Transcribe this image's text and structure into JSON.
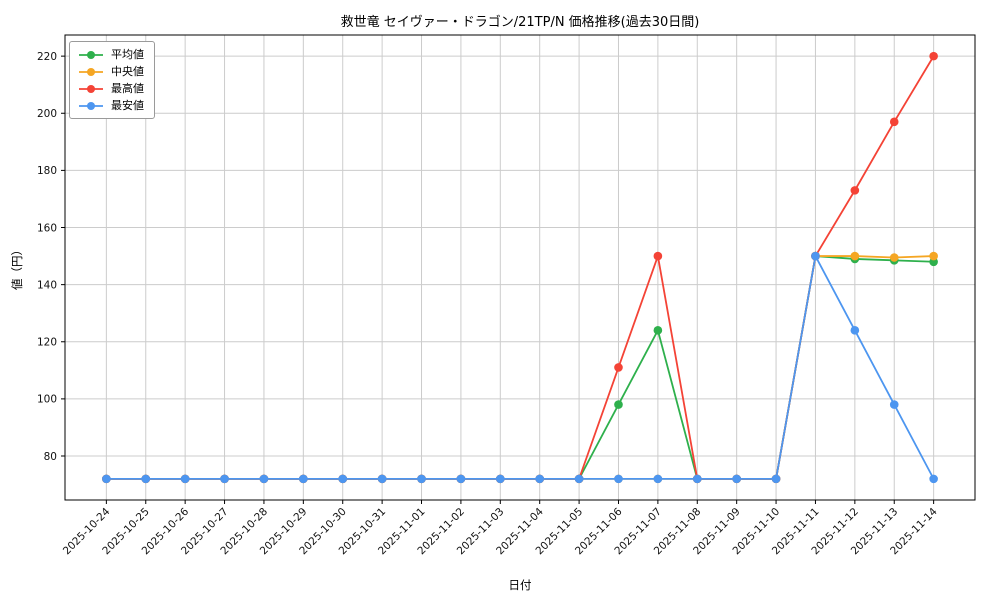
{
  "chart_data": {
    "type": "line",
    "title": "救世竜 セイヴァー・ドラゴン/21TP/N 価格推移(過去30日間)",
    "xlabel": "日付",
    "ylabel": "値（円）",
    "legend_position": "upper left",
    "grid": true,
    "ylim": [
      64.6,
      227.4
    ],
    "yticks": [
      80,
      100,
      120,
      140,
      160,
      180,
      200,
      220
    ],
    "categories": [
      "2025-10-24",
      "2025-10-25",
      "2025-10-26",
      "2025-10-27",
      "2025-10-28",
      "2025-10-29",
      "2025-10-30",
      "2025-10-31",
      "2025-11-01",
      "2025-11-02",
      "2025-11-03",
      "2025-11-04",
      "2025-11-05",
      "2025-11-06",
      "2025-11-07",
      "2025-11-08",
      "2025-11-09",
      "2025-11-10",
      "2025-11-11",
      "2025-11-12",
      "2025-11-13",
      "2025-11-14"
    ],
    "series": [
      {
        "name": "平均値",
        "color": "#2eb04c",
        "values": [
          72,
          72,
          72,
          72,
          72,
          72,
          72,
          72,
          72,
          72,
          72,
          72,
          72,
          98,
          124,
          72,
          72,
          72,
          150,
          149,
          148.5,
          148
        ]
      },
      {
        "name": "中央値",
        "color": "#f5a623",
        "values": [
          72,
          72,
          72,
          72,
          72,
          72,
          72,
          72,
          72,
          72,
          72,
          72,
          72,
          72,
          72,
          72,
          72,
          72,
          150,
          150,
          149.5,
          150
        ]
      },
      {
        "name": "最高値",
        "color": "#f44336",
        "values": [
          72,
          72,
          72,
          72,
          72,
          72,
          72,
          72,
          72,
          72,
          72,
          72,
          72,
          111,
          150,
          72,
          72,
          72,
          150,
          173,
          197,
          220
        ]
      },
      {
        "name": "最安値",
        "color": "#4d96f0",
        "values": [
          72,
          72,
          72,
          72,
          72,
          72,
          72,
          72,
          72,
          72,
          72,
          72,
          72,
          72,
          72,
          72,
          72,
          72,
          150,
          124,
          98,
          72
        ]
      }
    ],
    "colors": {
      "grid": "#cccccc",
      "axis": "#000000",
      "background": "#ffffff"
    }
  }
}
